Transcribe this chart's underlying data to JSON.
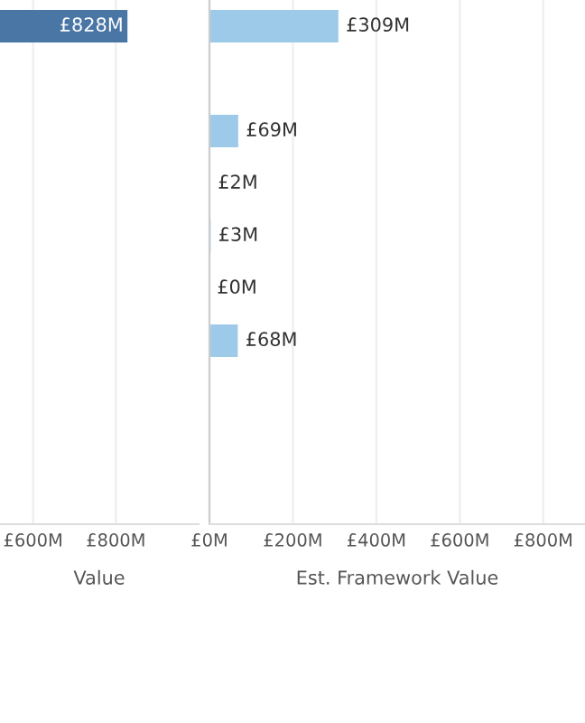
{
  "chart_data": [
    {
      "type": "bar",
      "orientation": "horizontal",
      "xlabel": "Value",
      "categories": [
        null,
        null,
        null,
        null,
        null,
        null,
        null,
        null,
        null,
        null
      ],
      "values": [
        828,
        null,
        null,
        null,
        null,
        null,
        null,
        null,
        null,
        null
      ],
      "value_labels": [
        "£828M",
        null,
        null,
        null,
        null,
        null,
        null,
        null,
        null,
        null
      ],
      "color": "#4a76a6",
      "xlim": [
        520,
        1000
      ],
      "xticks": [
        {
          "value": 600,
          "label": "£600M"
        },
        {
          "value": 800,
          "label": "£800M"
        }
      ],
      "grid": "x",
      "tick_labels": "x"
    },
    {
      "type": "bar",
      "orientation": "horizontal",
      "xlabel": "Est. Framework Value",
      "categories": [
        null,
        null,
        null,
        null,
        null,
        null,
        null,
        null,
        null,
        null
      ],
      "values": [
        309,
        null,
        69,
        2,
        3,
        0,
        68,
        null,
        null,
        null
      ],
      "value_labels": [
        "£309M",
        null,
        "£69M",
        "£2M",
        "£3M",
        "£0M",
        "£68M",
        null,
        null,
        null
      ],
      "color": "#9ecae9",
      "xlim": [
        0,
        900
      ],
      "xticks": [
        {
          "value": 0,
          "label": "£0M"
        },
        {
          "value": 200,
          "label": "£200M"
        },
        {
          "value": 400,
          "label": "£400M"
        },
        {
          "value": 600,
          "label": "£600M"
        },
        {
          "value": 800,
          "label": "£800M"
        }
      ],
      "grid": "x",
      "tick_labels": "x"
    }
  ]
}
